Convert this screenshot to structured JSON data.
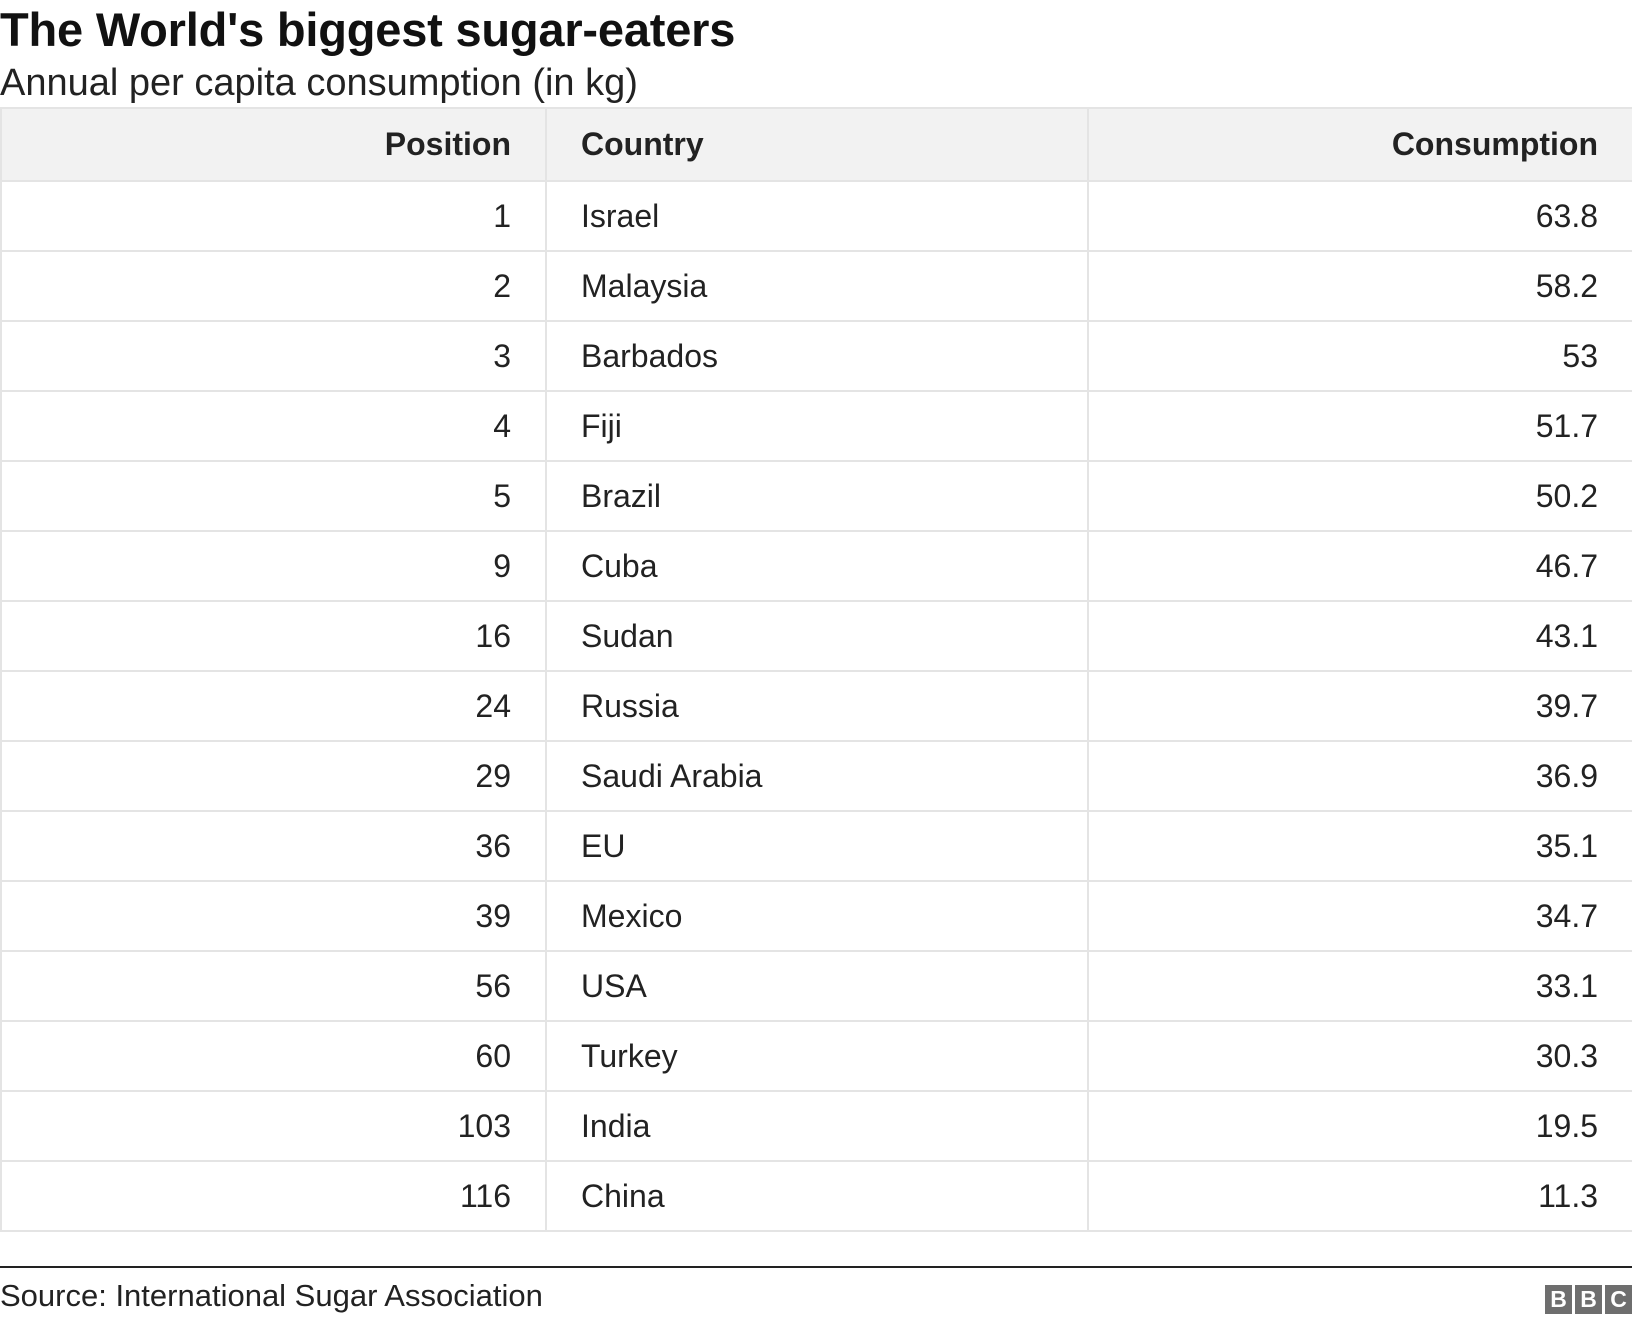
{
  "chart_data": {
    "type": "table",
    "title": "The World's biggest sugar-eaters",
    "subtitle": "Annual per capita consumption (in kg)",
    "columns": [
      "Position",
      "Country",
      "Consumption"
    ],
    "rows": [
      {
        "position": "1",
        "country": "Israel",
        "consumption": "63.8"
      },
      {
        "position": "2",
        "country": "Malaysia",
        "consumption": "58.2"
      },
      {
        "position": "3",
        "country": "Barbados",
        "consumption": "53"
      },
      {
        "position": "4",
        "country": "Fiji",
        "consumption": "51.7"
      },
      {
        "position": "5",
        "country": "Brazil",
        "consumption": "50.2"
      },
      {
        "position": "9",
        "country": "Cuba",
        "consumption": "46.7"
      },
      {
        "position": "16",
        "country": "Sudan",
        "consumption": "43.1"
      },
      {
        "position": "24",
        "country": "Russia",
        "consumption": "39.7"
      },
      {
        "position": "29",
        "country": "Saudi Arabia",
        "consumption": "36.9"
      },
      {
        "position": "36",
        "country": "EU",
        "consumption": "35.1"
      },
      {
        "position": "39",
        "country": "Mexico",
        "consumption": "34.7"
      },
      {
        "position": "56",
        "country": "USA",
        "consumption": "33.1"
      },
      {
        "position": "60",
        "country": "Turkey",
        "consumption": "30.3"
      },
      {
        "position": "103",
        "country": "India",
        "consumption": "19.5"
      },
      {
        "position": "116",
        "country": "China",
        "consumption": "11.3"
      }
    ],
    "source": "Source: International Sugar Association"
  },
  "logo": {
    "letters": [
      "B",
      "B",
      "C"
    ]
  }
}
